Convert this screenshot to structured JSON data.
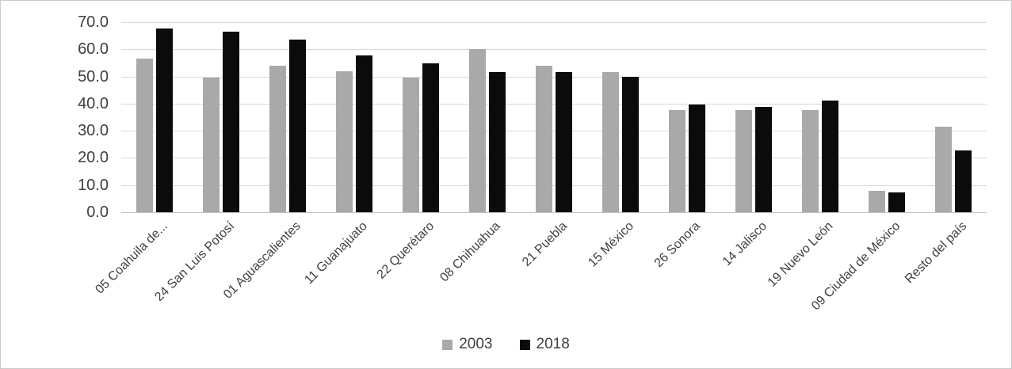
{
  "chart_data": {
    "type": "bar",
    "title": "",
    "categories": [
      "05 Coahuila de...",
      "24 San Luis Potosí",
      "01 Aguascalientes",
      "11 Guanajuato",
      "22 Querétaro",
      "08 Chihuahua",
      "21 Puebla",
      "15 México",
      "26 Sonora",
      "14 Jalisco",
      "19 Nuevo León",
      "09 Ciudad de México",
      "Resto del país"
    ],
    "series": [
      {
        "name": "2003",
        "color": "#a9a9a9",
        "values": [
          56.6,
          49.5,
          54.0,
          52.0,
          49.5,
          60.0,
          54.0,
          51.5,
          37.5,
          37.5,
          37.5,
          8.0,
          31.4
        ]
      },
      {
        "name": "2018",
        "color": "#0b0b0b",
        "values": [
          67.7,
          66.6,
          63.6,
          57.8,
          54.8,
          51.7,
          51.6,
          50.0,
          39.8,
          38.7,
          41.2,
          7.3,
          22.7
        ]
      }
    ],
    "xlabel": "",
    "ylabel": "",
    "ylim": [
      0,
      70
    ],
    "ytick_step": 10,
    "yticks": [
      "0.0",
      "10.0",
      "20.0",
      "30.0",
      "40.0",
      "50.0",
      "60.0",
      "70.0"
    ],
    "grid": true,
    "legend_position": "bottom",
    "bar_orientation": "vertical"
  }
}
